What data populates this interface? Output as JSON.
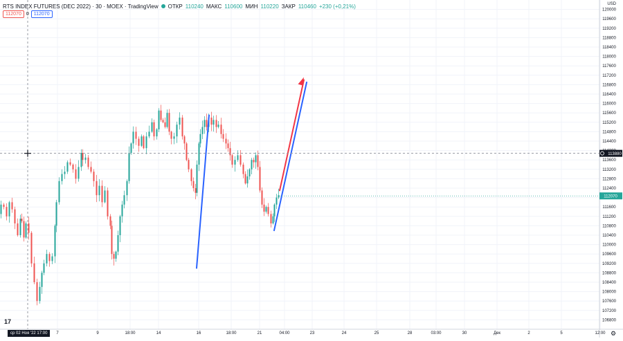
{
  "header": {
    "title": "RTS INDEX FUTURES (DEC 2022) · 30 · MOEX · TradingView",
    "open_label": "ОТКР",
    "open_value": "110240",
    "high_label": "МАКС",
    "high_value": "110600",
    "low_label": "МИН",
    "low_value": "110220",
    "close_label": "ЗАКР",
    "close_value": "110460",
    "change": "+230 (+0,21%)",
    "currency": "USD"
  },
  "price_boxes": {
    "bid": "112070",
    "spread": "0",
    "ask": "112070"
  },
  "footer": {
    "date_tag": "ср 02 Ноя '22  17:00",
    "logo": "17"
  },
  "colors": {
    "up": "#26a69a",
    "down": "#ef5350",
    "line_blue": "#2962ff",
    "line_red": "#f23645",
    "crosshair_tag": "#131722",
    "last_price_tag": "#26a69a"
  },
  "chart_data": {
    "type": "candlestick",
    "y_range": [
      106400,
      120400
    ],
    "y_ticks": [
      "120000",
      "119600",
      "119200",
      "118800",
      "118400",
      "118000",
      "117600",
      "117200",
      "116800",
      "116400",
      "116000",
      "115600",
      "115200",
      "114800",
      "114400",
      "114000",
      "113600",
      "113200",
      "112800",
      "112400",
      "112000",
      "111600",
      "111200",
      "110800",
      "110400",
      "110000",
      "109600",
      "109200",
      "108800",
      "108400",
      "108000",
      "107600",
      "107200",
      "106800"
    ],
    "x_ticks": [
      "7",
      "9",
      "18:00",
      "14",
      "16",
      "18:00",
      "21",
      "04:00",
      "23",
      "24",
      "25",
      "28",
      "03:00",
      "30",
      "Дек",
      "2",
      "5",
      "12:00"
    ],
    "crosshair_price": "113880",
    "last_price": "112070",
    "path_points": [
      [
        0,
        111300
      ],
      [
        4,
        111700
      ],
      [
        8,
        111600
      ],
      [
        12,
        111200
      ],
      [
        16,
        111800
      ],
      [
        20,
        111500
      ],
      [
        24,
        110900
      ],
      [
        28,
        110400
      ],
      [
        30,
        111100
      ],
      [
        33,
        111000
      ],
      [
        36,
        110300
      ],
      [
        40,
        110900
      ],
      [
        44,
        110500
      ],
      [
        48,
        109200
      ],
      [
        52,
        108400
      ],
      [
        56,
        107600
      ],
      [
        59,
        108200
      ],
      [
        62,
        108800
      ],
      [
        66,
        109200
      ],
      [
        70,
        109600
      ],
      [
        74,
        109300
      ],
      [
        78,
        109500
      ],
      [
        80,
        110800
      ],
      [
        84,
        111800
      ],
      [
        88,
        112700
      ],
      [
        92,
        113000
      ],
      [
        96,
        113100
      ],
      [
        100,
        113500
      ],
      [
        104,
        113400
      ],
      [
        108,
        113200
      ],
      [
        112,
        112800
      ],
      [
        116,
        113300
      ],
      [
        118,
        113900
      ],
      [
        122,
        113600
      ],
      [
        126,
        113700
      ],
      [
        130,
        113300
      ],
      [
        134,
        113100
      ],
      [
        138,
        112700
      ],
      [
        142,
        112100
      ],
      [
        146,
        112500
      ],
      [
        150,
        111800
      ],
      [
        154,
        112300
      ],
      [
        158,
        111200
      ],
      [
        160,
        110800
      ],
      [
        163,
        109600
      ],
      [
        166,
        109400
      ],
      [
        169,
        109700
      ],
      [
        172,
        110400
      ],
      [
        175,
        111200
      ],
      [
        178,
        111700
      ],
      [
        182,
        112100
      ],
      [
        185,
        112700
      ],
      [
        188,
        113900
      ],
      [
        191,
        114300
      ],
      [
        195,
        114800
      ],
      [
        199,
        114500
      ],
      [
        203,
        114200
      ],
      [
        206,
        114600
      ],
      [
        210,
        114100
      ],
      [
        214,
        114600
      ],
      [
        218,
        114800
      ],
      [
        221,
        115200
      ],
      [
        225,
        114600
      ],
      [
        228,
        114900
      ],
      [
        231,
        115700
      ],
      [
        234,
        115300
      ],
      [
        237,
        115200
      ],
      [
        240,
        115000
      ],
      [
        243,
        115600
      ],
      [
        246,
        114800
      ],
      [
        250,
        114500
      ],
      [
        254,
        114600
      ],
      [
        258,
        115100
      ],
      [
        262,
        115400
      ],
      [
        265,
        114600
      ],
      [
        268,
        114300
      ],
      [
        271,
        113600
      ],
      [
        275,
        113200
      ],
      [
        278,
        112700
      ],
      [
        281,
        112400
      ],
      [
        283,
        112200
      ],
      [
        286,
        113400
      ],
      [
        288,
        114300
      ],
      [
        291,
        114700
      ],
      [
        294,
        115000
      ],
      [
        297,
        115300
      ],
      [
        300,
        115000
      ],
      [
        304,
        115400
      ],
      [
        307,
        115100
      ],
      [
        311,
        115300
      ],
      [
        314,
        115000
      ],
      [
        318,
        115100
      ],
      [
        321,
        114700
      ],
      [
        325,
        114500
      ],
      [
        328,
        114300
      ],
      [
        331,
        114100
      ],
      [
        334,
        113800
      ],
      [
        338,
        113400
      ],
      [
        342,
        113600
      ],
      [
        346,
        113800
      ],
      [
        350,
        113400
      ],
      [
        353,
        113000
      ],
      [
        356,
        112600
      ],
      [
        359,
        112900
      ],
      [
        362,
        113200
      ],
      [
        365,
        113600
      ],
      [
        368,
        113500
      ],
      [
        371,
        113800
      ],
      [
        374,
        113300
      ],
      [
        377,
        112300
      ],
      [
        380,
        111700
      ],
      [
        383,
        111400
      ],
      [
        386,
        111600
      ],
      [
        390,
        111300
      ],
      [
        393,
        110900
      ],
      [
        395,
        111200
      ],
      [
        398,
        111700
      ],
      [
        401,
        112000
      ],
      [
        404,
        112100
      ]
    ],
    "drawings": [
      {
        "color": "blue",
        "from": [
          284,
          109000
        ],
        "to": [
          302,
          115500
        ]
      },
      {
        "color": "blue",
        "from": [
          396,
          110600
        ],
        "to": [
          443,
          116900
        ]
      },
      {
        "color": "red",
        "from": [
          404,
          112300
        ],
        "to": [
          439,
          117000
        ]
      }
    ]
  }
}
